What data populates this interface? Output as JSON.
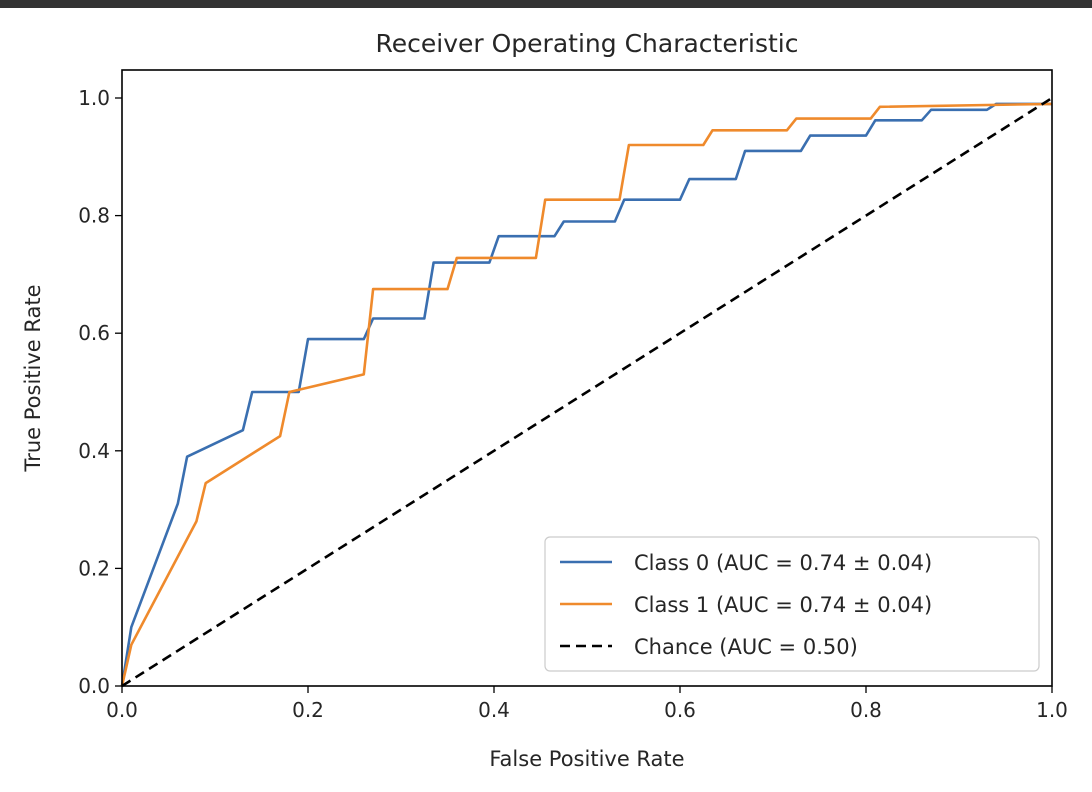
{
  "chart_data": {
    "type": "line",
    "title": "Receiver Operating Characteristic",
    "xlabel": "False Positive Rate",
    "ylabel": "True Positive Rate",
    "xlim": [
      0.0,
      1.0
    ],
    "ylim": [
      0.0,
      1.0
    ],
    "grid": false,
    "legend_position": "lower-right",
    "x_ticks": [
      "0.0",
      "0.2",
      "0.4",
      "0.6",
      "0.8",
      "1.0"
    ],
    "y_ticks": [
      "0.0",
      "0.2",
      "0.4",
      "0.6",
      "0.8",
      "1.0"
    ],
    "series": [
      {
        "name": "Class 0 (AUC = 0.74 ± 0.04)",
        "color": "#3a6fb0",
        "style": "solid",
        "points": [
          [
            0.0,
            0.0
          ],
          [
            0.01,
            0.1
          ],
          [
            0.06,
            0.31
          ],
          [
            0.07,
            0.39
          ],
          [
            0.13,
            0.435
          ],
          [
            0.14,
            0.5
          ],
          [
            0.19,
            0.5
          ],
          [
            0.2,
            0.59
          ],
          [
            0.26,
            0.59
          ],
          [
            0.27,
            0.625
          ],
          [
            0.325,
            0.625
          ],
          [
            0.335,
            0.72
          ],
          [
            0.395,
            0.72
          ],
          [
            0.405,
            0.765
          ],
          [
            0.465,
            0.765
          ],
          [
            0.475,
            0.79
          ],
          [
            0.53,
            0.79
          ],
          [
            0.54,
            0.827
          ],
          [
            0.6,
            0.827
          ],
          [
            0.61,
            0.862
          ],
          [
            0.66,
            0.862
          ],
          [
            0.67,
            0.91
          ],
          [
            0.73,
            0.91
          ],
          [
            0.74,
            0.936
          ],
          [
            0.8,
            0.936
          ],
          [
            0.81,
            0.962
          ],
          [
            0.86,
            0.962
          ],
          [
            0.87,
            0.98
          ],
          [
            0.93,
            0.98
          ],
          [
            0.94,
            0.99
          ],
          [
            1.0,
            0.99
          ]
        ]
      },
      {
        "name": "Class 1 (AUC = 0.74 ± 0.04)",
        "color": "#ef8a2c",
        "style": "solid",
        "points": [
          [
            0.0,
            0.0
          ],
          [
            0.01,
            0.07
          ],
          [
            0.08,
            0.28
          ],
          [
            0.09,
            0.345
          ],
          [
            0.17,
            0.425
          ],
          [
            0.18,
            0.5
          ],
          [
            0.26,
            0.53
          ],
          [
            0.27,
            0.675
          ],
          [
            0.35,
            0.675
          ],
          [
            0.36,
            0.728
          ],
          [
            0.445,
            0.728
          ],
          [
            0.455,
            0.827
          ],
          [
            0.535,
            0.827
          ],
          [
            0.545,
            0.92
          ],
          [
            0.625,
            0.92
          ],
          [
            0.635,
            0.945
          ],
          [
            0.715,
            0.945
          ],
          [
            0.725,
            0.965
          ],
          [
            0.805,
            0.965
          ],
          [
            0.815,
            0.985
          ],
          [
            1.0,
            0.99
          ]
        ]
      },
      {
        "name": "Chance (AUC = 0.50)",
        "color": "#000000",
        "style": "dashed",
        "points": [
          [
            0.0,
            0.0
          ],
          [
            1.0,
            1.0
          ]
        ]
      }
    ]
  }
}
